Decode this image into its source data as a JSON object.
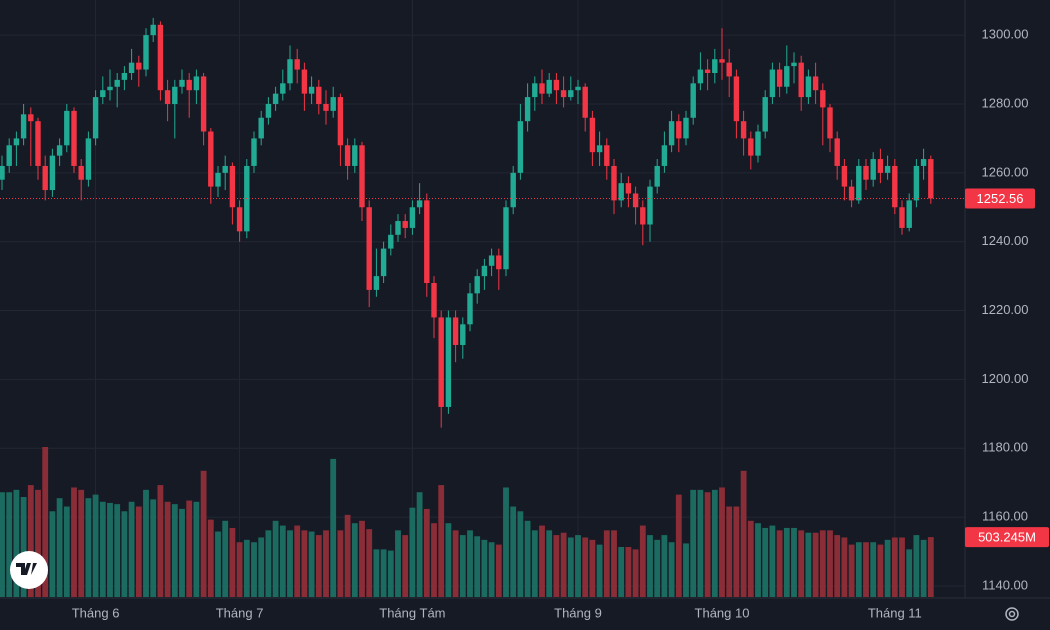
{
  "chart_data": {
    "type": "candlestick",
    "up_color": "#22ab94",
    "down_color": "#f23645",
    "volume_up_color": "#1c6b61",
    "volume_down_color": "#8a2d37",
    "ylim": [
      1136.8,
      1310.2
    ],
    "yticks": [
      {
        "value": 1140,
        "label": "1140.00"
      },
      {
        "value": 1160,
        "label": "1160.00"
      },
      {
        "value": 1180,
        "label": "1180.00"
      },
      {
        "value": 1200,
        "label": "1200.00"
      },
      {
        "value": 1220,
        "label": "1220.00"
      },
      {
        "value": 1240,
        "label": "1240.00"
      },
      {
        "value": 1260,
        "label": "1260.00"
      },
      {
        "value": 1280,
        "label": "1280.00"
      },
      {
        "value": 1300,
        "label": "1300.00"
      }
    ],
    "grid": true,
    "xticks": [
      {
        "value": 13,
        "label": "Tháng 6"
      },
      {
        "value": 33,
        "label": "Tháng 7"
      },
      {
        "value": 57,
        "label": "Tháng Tám"
      },
      {
        "value": 80,
        "label": "Tháng 9"
      },
      {
        "value": 100,
        "label": "Tháng 10"
      },
      {
        "value": 124,
        "label": "Tháng 11"
      }
    ],
    "open": [
      1258,
      1262,
      1268,
      1270,
      1277,
      1275,
      1262,
      1255,
      1265,
      1268,
      1278,
      1262,
      1258,
      1270,
      1282,
      1284,
      1285,
      1287,
      1289,
      1292,
      1290,
      1300,
      1303,
      1284,
      1280,
      1285,
      1287,
      1284,
      1288,
      1272,
      1256,
      1260,
      1262,
      1250,
      1243,
      1262,
      1270,
      1276,
      1280,
      1283,
      1286,
      1293,
      1290,
      1283,
      1285,
      1280,
      1278,
      1282,
      1268,
      1262,
      1268,
      1250,
      1226,
      1230,
      1238,
      1242,
      1246,
      1244,
      1250,
      1252,
      1228,
      1218,
      1192,
      1218,
      1210,
      1216,
      1225,
      1230,
      1233,
      1236,
      1232,
      1250,
      1260,
      1275,
      1282,
      1286,
      1283,
      1287,
      1284,
      1282,
      1284,
      1285,
      1276,
      1266,
      1268,
      1262,
      1252,
      1257,
      1254,
      1250,
      1245,
      1256,
      1262,
      1268,
      1275,
      1270,
      1276,
      1286,
      1290,
      1289,
      1293,
      1292,
      1288,
      1275,
      1270,
      1265,
      1272,
      1282,
      1290,
      1285,
      1291,
      1292,
      1282,
      1288,
      1284,
      1279,
      1270,
      1262,
      1256,
      1252,
      1262,
      1258,
      1264,
      1260,
      1262,
      1250,
      1244,
      1252,
      1262,
      1264
    ],
    "high": [
      1265,
      1270,
      1272,
      1280,
      1279,
      1276,
      1265,
      1267,
      1270,
      1280,
      1279,
      1264,
      1272,
      1284,
      1288,
      1290,
      1289,
      1291,
      1296,
      1294,
      1302,
      1305,
      1304,
      1287,
      1287,
      1290,
      1289,
      1290,
      1289,
      1273,
      1262,
      1265,
      1263,
      1252,
      1264,
      1272,
      1278,
      1282,
      1285,
      1290,
      1297,
      1296,
      1292,
      1288,
      1287,
      1284,
      1285,
      1283,
      1270,
      1270,
      1269,
      1252,
      1238,
      1240,
      1245,
      1248,
      1248,
      1252,
      1257,
      1254,
      1230,
      1220,
      1220,
      1220,
      1218,
      1228,
      1232,
      1235,
      1238,
      1238,
      1252,
      1262,
      1280,
      1286,
      1288,
      1290,
      1289,
      1289,
      1288,
      1288,
      1287,
      1286,
      1278,
      1272,
      1270,
      1264,
      1260,
      1259,
      1256,
      1252,
      1258,
      1264,
      1272,
      1278,
      1277,
      1278,
      1288,
      1295,
      1293,
      1296,
      1302,
      1296,
      1290,
      1278,
      1272,
      1274,
      1284,
      1292,
      1292,
      1297,
      1295,
      1294,
      1290,
      1292,
      1286,
      1280,
      1272,
      1264,
      1258,
      1264,
      1264,
      1266,
      1267,
      1265,
      1264,
      1252,
      1254,
      1264,
      1267,
      1265
    ],
    "low": [
      1255,
      1260,
      1262,
      1268,
      1262,
      1258,
      1252,
      1253,
      1262,
      1266,
      1260,
      1252,
      1256,
      1268,
      1280,
      1281,
      1279,
      1284,
      1287,
      1285,
      1288,
      1298,
      1281,
      1275,
      1270,
      1283,
      1276,
      1280,
      1268,
      1251,
      1253,
      1255,
      1245,
      1240,
      1241,
      1260,
      1268,
      1274,
      1278,
      1281,
      1284,
      1286,
      1278,
      1280,
      1277,
      1274,
      1276,
      1262,
      1258,
      1260,
      1246,
      1221,
      1224,
      1228,
      1236,
      1240,
      1241,
      1242,
      1248,
      1224,
      1212,
      1186,
      1190,
      1205,
      1206,
      1214,
      1222,
      1226,
      1230,
      1226,
      1230,
      1248,
      1258,
      1272,
      1278,
      1280,
      1282,
      1280,
      1279,
      1281,
      1280,
      1272,
      1262,
      1262,
      1258,
      1248,
      1250,
      1250,
      1245,
      1239,
      1240,
      1254,
      1260,
      1266,
      1266,
      1268,
      1274,
      1284,
      1284,
      1286,
      1287,
      1282,
      1270,
      1265,
      1261,
      1263,
      1270,
      1280,
      1282,
      1283,
      1286,
      1278,
      1280,
      1280,
      1268,
      1266,
      1258,
      1252,
      1250,
      1251,
      1255,
      1256,
      1257,
      1258,
      1248,
      1242,
      1243,
      1250,
      1258,
      1251
    ],
    "close": [
      1262,
      1268,
      1270,
      1277,
      1275,
      1262,
      1255,
      1265,
      1268,
      1278,
      1262,
      1258,
      1270,
      1282,
      1284,
      1285,
      1287,
      1289,
      1292,
      1290,
      1300,
      1303,
      1284,
      1280,
      1285,
      1287,
      1284,
      1288,
      1272,
      1256,
      1260,
      1262,
      1250,
      1243,
      1262,
      1270,
      1276,
      1280,
      1283,
      1286,
      1293,
      1290,
      1283,
      1285,
      1280,
      1278,
      1282,
      1268,
      1262,
      1268,
      1250,
      1226,
      1230,
      1238,
      1242,
      1246,
      1244,
      1250,
      1252,
      1228,
      1218,
      1192,
      1218,
      1210,
      1216,
      1225,
      1230,
      1233,
      1236,
      1232,
      1250,
      1260,
      1275,
      1282,
      1286,
      1283,
      1287,
      1284,
      1282,
      1284,
      1285,
      1276,
      1266,
      1268,
      1262,
      1252,
      1257,
      1254,
      1250,
      1245,
      1256,
      1262,
      1268,
      1275,
      1270,
      1276,
      1286,
      1290,
      1289,
      1293,
      1292,
      1288,
      1275,
      1270,
      1265,
      1272,
      1282,
      1290,
      1285,
      1291,
      1292,
      1282,
      1288,
      1284,
      1279,
      1270,
      1262,
      1256,
      1252,
      1262,
      1258,
      1264,
      1260,
      1262,
      1250,
      1244,
      1252,
      1262,
      1264,
      1252.56
    ],
    "volume": [
      880,
      880,
      900,
      840,
      940,
      900,
      1260,
      720,
      830,
      760,
      920,
      900,
      830,
      860,
      800,
      790,
      780,
      720,
      800,
      760,
      900,
      820,
      940,
      800,
      780,
      740,
      810,
      800,
      1060,
      650,
      550,
      640,
      580,
      460,
      480,
      460,
      500,
      560,
      640,
      600,
      560,
      600,
      560,
      550,
      520,
      560,
      1160,
      560,
      690,
      620,
      640,
      570,
      400,
      400,
      390,
      560,
      520,
      750,
      880,
      740,
      620,
      940,
      620,
      560,
      520,
      560,
      510,
      480,
      460,
      440,
      920,
      760,
      720,
      640,
      560,
      600,
      560,
      520,
      540,
      500,
      520,
      500,
      480,
      440,
      560,
      560,
      420,
      420,
      400,
      600,
      520,
      480,
      520,
      460,
      860,
      450,
      900,
      900,
      880,
      900,
      920,
      760,
      760,
      1060,
      640,
      620,
      580,
      600,
      560,
      580,
      580,
      560,
      540,
      540,
      560,
      560,
      520,
      500,
      440,
      460,
      460,
      460,
      440,
      480,
      500,
      500,
      400,
      520,
      480,
      503.245
    ],
    "last_price": 1252.56,
    "last_volume": 503.245,
    "last_volume_label": "503.245M"
  }
}
